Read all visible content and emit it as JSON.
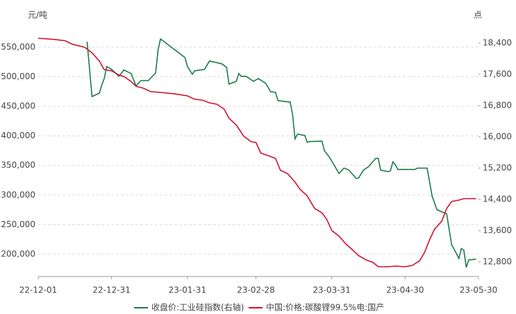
{
  "chart_data": {
    "type": "line",
    "y_unit": "元/吨",
    "y2_unit": "点",
    "xlim": [
      "22-12-01",
      "23-05-30"
    ],
    "xticks": [
      "22-12-01",
      "22-12-31",
      "23-01-31",
      "23-02-28",
      "23-03-31",
      "23-04-30",
      "23-05-30"
    ],
    "ylim": [
      165775,
      582900
    ],
    "yticks": [
      {
        "value": 200000,
        "label": "200,000"
      },
      {
        "value": 250000,
        "label": "250,000"
      },
      {
        "value": 300000,
        "label": "300,000"
      },
      {
        "value": 350000,
        "label": "350,000"
      },
      {
        "value": 400000,
        "label": "400,000"
      },
      {
        "value": 450000,
        "label": "450,000"
      },
      {
        "value": 500000,
        "label": "500,000"
      },
      {
        "value": 550000,
        "label": "550,000"
      }
    ],
    "y2lim": [
      12480,
      18790
    ],
    "y2ticks": [
      {
        "value": 12800,
        "label": "12,800"
      },
      {
        "value": 13600,
        "label": "13,600"
      },
      {
        "value": 14400,
        "label": "14,400"
      },
      {
        "value": 15200,
        "label": "15,200"
      },
      {
        "value": 16000,
        "label": "16,000"
      },
      {
        "value": 16800,
        "label": "16,800"
      },
      {
        "value": 17600,
        "label": "17,600"
      },
      {
        "value": 18400,
        "label": "18,400"
      }
    ],
    "grid": true,
    "legend": "bottom",
    "series": [
      {
        "name": "收盘价:工业硅指数(右轴)",
        "color": "#1a7a4a",
        "axis": "y2",
        "x": [
          "22-12-21",
          "22-12-23",
          "22-12-26",
          "22-12-27",
          "22-12-28",
          "22-12-29",
          "22-12-31",
          "23-01-03",
          "23-01-05",
          "23-01-08",
          "23-01-10",
          "23-01-12",
          "23-01-15",
          "23-01-18",
          "23-01-19",
          "23-01-20",
          "23-01-30",
          "23-01-31",
          "23-02-02",
          "23-02-03",
          "23-02-07",
          "23-02-09",
          "23-02-14",
          "23-02-16",
          "23-02-17",
          "23-02-20",
          "23-02-21",
          "23-02-22",
          "23-02-24",
          "23-02-27",
          "23-03-01",
          "23-03-04",
          "23-03-06",
          "23-03-08",
          "23-03-09",
          "23-03-14",
          "23-03-15",
          "23-03-16",
          "23-03-17",
          "23-03-20",
          "23-03-21",
          "23-03-22",
          "23-03-27",
          "23-03-28",
          "23-03-30",
          "23-03-31",
          "23-04-03",
          "23-04-05",
          "23-04-07",
          "23-04-10",
          "23-04-11",
          "23-04-13",
          "23-04-15",
          "23-04-18",
          "23-04-19",
          "23-04-20",
          "23-04-23",
          "23-04-24",
          "23-04-25",
          "23-04-26",
          "23-04-27",
          "23-05-04",
          "23-05-05",
          "23-05-09",
          "23-05-10",
          "23-05-11",
          "23-05-13",
          "23-05-17",
          "23-05-18",
          "23-05-19",
          "23-05-22",
          "23-05-23",
          "23-05-24",
          "23-05-25",
          "23-05-26",
          "23-05-29"
        ],
        "values": [
          18436,
          17030,
          17120,
          17330,
          17490,
          17800,
          17725,
          17550,
          17710,
          17620,
          17300,
          17440,
          17440,
          17635,
          18220,
          18505,
          18030,
          17800,
          17600,
          17690,
          17725,
          17940,
          17870,
          17780,
          17350,
          17420,
          17620,
          17550,
          17550,
          17420,
          17490,
          17370,
          17155,
          17140,
          16925,
          16890,
          16570,
          15950,
          16070,
          16035,
          15860,
          15880,
          15890,
          15645,
          15485,
          15380,
          15060,
          15200,
          15150,
          14935,
          14950,
          15150,
          15235,
          15450,
          15450,
          15150,
          15110,
          15130,
          15360,
          15290,
          15165,
          15165,
          15200,
          15200,
          14845,
          14490,
          14135,
          14030,
          13635,
          13245,
          12890,
          13140,
          13100,
          12660,
          12850,
          12870
        ]
      },
      {
        "name": "中国:价格:碳酸锂99.5%电:国产",
        "color": "#d0112b",
        "x": [
          "22-12-01",
          "22-12-08",
          "22-12-12",
          "22-12-15",
          "22-12-20",
          "22-12-23",
          "22-12-26",
          "22-12-28",
          "22-12-31",
          "23-01-03",
          "23-01-05",
          "23-01-08",
          "23-01-10",
          "23-01-13",
          "23-01-16",
          "23-01-20",
          "23-01-26",
          "23-01-31",
          "23-02-03",
          "23-02-06",
          "23-02-09",
          "23-02-12",
          "23-02-15",
          "23-02-17",
          "23-02-20",
          "23-02-23",
          "23-02-26",
          "23-02-28",
          "23-03-02",
          "23-03-05",
          "23-03-08",
          "23-03-10",
          "23-03-13",
          "23-03-16",
          "23-03-18",
          "23-03-21",
          "23-03-24",
          "23-03-27",
          "23-03-29",
          "23-03-31",
          "23-04-03",
          "23-04-06",
          "23-04-08",
          "23-04-11",
          "23-04-14",
          "23-04-17",
          "23-04-19",
          "23-04-23",
          "23-04-26",
          "23-04-30",
          "23-05-03",
          "23-05-06",
          "23-05-08",
          "23-05-10",
          "23-05-12",
          "23-05-15",
          "23-05-17",
          "23-05-19",
          "23-05-22",
          "23-05-24",
          "23-05-29"
        ],
        "values": [
          565300,
          563000,
          561000,
          555000,
          550000,
          540600,
          526500,
          512000,
          510000,
          503000,
          500600,
          492000,
          484000,
          480700,
          474800,
          473600,
          471000,
          467800,
          462000,
          460700,
          456000,
          453600,
          445400,
          430000,
          418400,
          399600,
          390200,
          389000,
          371000,
          366700,
          362000,
          342000,
          336000,
          322000,
          310000,
          298500,
          277400,
          270000,
          258600,
          240000,
          230400,
          216300,
          209300,
          197500,
          190400,
          185700,
          178700,
          178700,
          179900,
          178700,
          181000,
          189300,
          203400,
          224500,
          242000,
          256000,
          277400,
          289000,
          291500,
          293800,
          293800
        ]
      }
    ]
  }
}
